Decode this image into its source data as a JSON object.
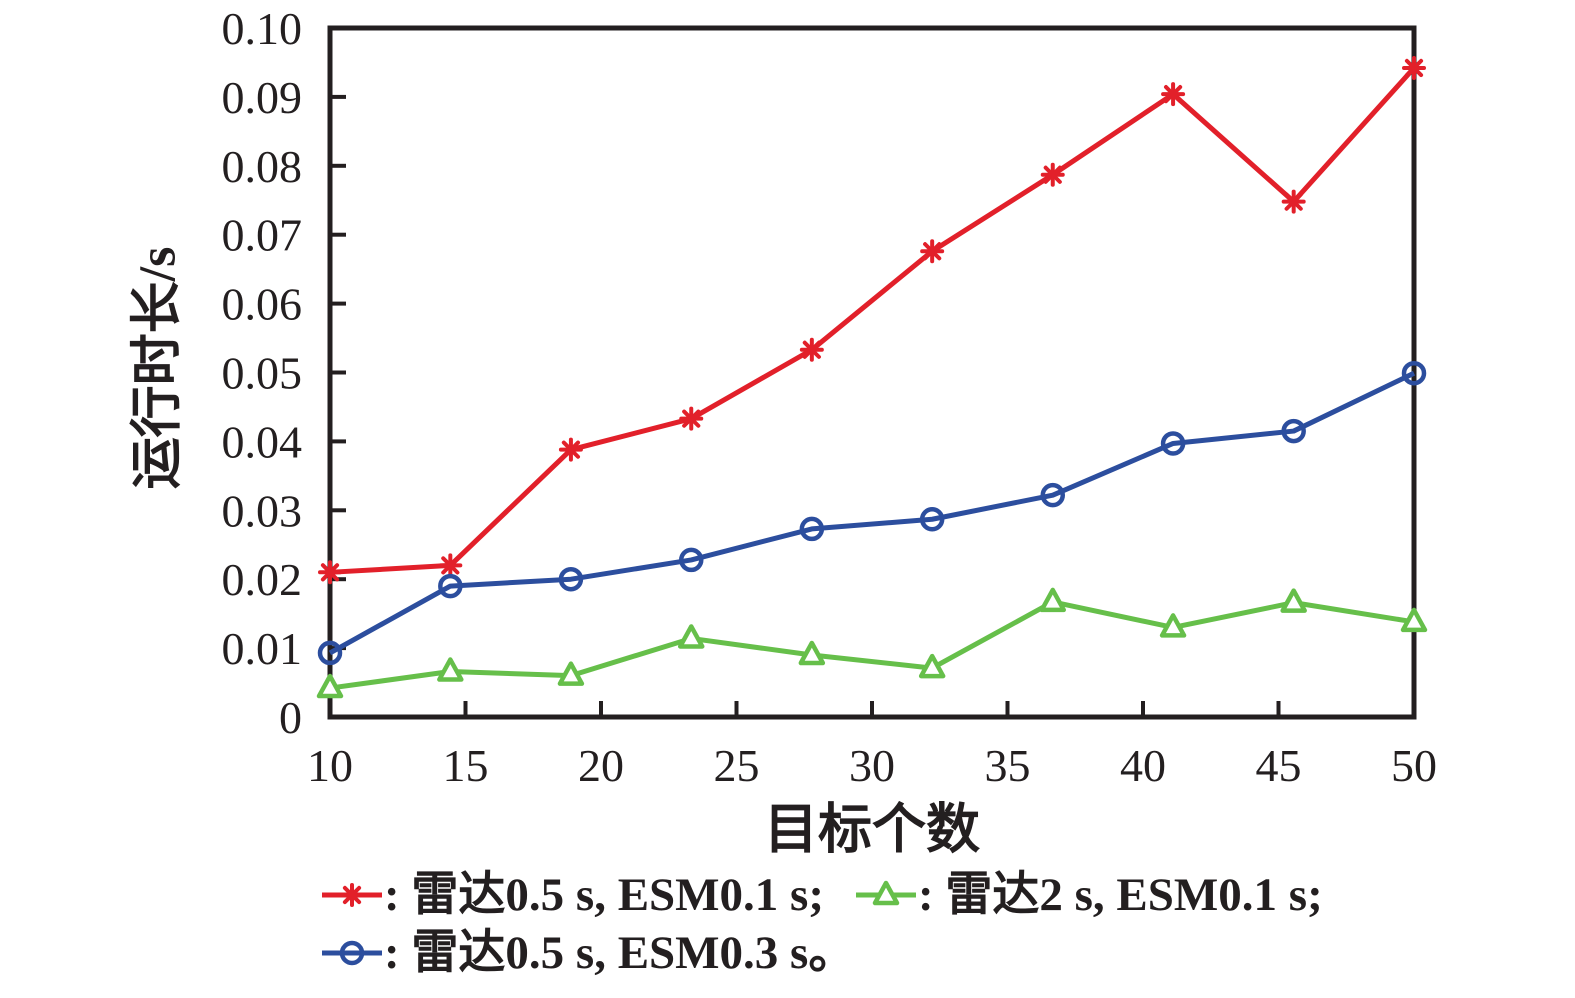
{
  "chart_data": {
    "type": "line",
    "title": "",
    "xlabel": "目标个数",
    "ylabel": "运行时长/s",
    "xlim": [
      10,
      50
    ],
    "ylim": [
      0,
      0.1
    ],
    "grid": false,
    "legend_position": "bottom",
    "axis_color": "#231f20",
    "x_ticks": [
      {
        "value": 10,
        "label": "10"
      },
      {
        "value": 15,
        "label": "15"
      },
      {
        "value": 20,
        "label": "20"
      },
      {
        "value": 25,
        "label": "25"
      },
      {
        "value": 30,
        "label": "30"
      },
      {
        "value": 35,
        "label": "35"
      },
      {
        "value": 40,
        "label": "40"
      },
      {
        "value": 45,
        "label": "45"
      },
      {
        "value": 50,
        "label": "50"
      }
    ],
    "y_ticks": [
      {
        "value": 0.0,
        "label": "0"
      },
      {
        "value": 0.01,
        "label": "0.01"
      },
      {
        "value": 0.02,
        "label": "0.02"
      },
      {
        "value": 0.03,
        "label": "0.03"
      },
      {
        "value": 0.04,
        "label": "0.04"
      },
      {
        "value": 0.05,
        "label": "0.05"
      },
      {
        "value": 0.06,
        "label": "0.06"
      },
      {
        "value": 0.07,
        "label": "0.07"
      },
      {
        "value": 0.08,
        "label": "0.08"
      },
      {
        "value": 0.09,
        "label": "0.09"
      },
      {
        "value": 0.1,
        "label": "0.10"
      }
    ],
    "x": [
      10,
      14.44,
      18.89,
      23.33,
      27.78,
      32.22,
      36.67,
      41.11,
      45.56,
      50
    ],
    "series": [
      {
        "name": "雷达0.5 s, ESM0.1 s",
        "legend_label": ": 雷达0.5 s, ESM0.1 s;",
        "marker": "asterisk",
        "color": "#e2202a",
        "values": [
          0.021,
          0.022,
          0.0388,
          0.0433,
          0.0533,
          0.0676,
          0.0787,
          0.0904,
          0.0748,
          0.0942
        ]
      },
      {
        "name": "雷达2 s, ESM0.1 s",
        "legend_label": ": 雷达2 s, ESM0.1 s;",
        "marker": "triangle",
        "color": "#66bf4a",
        "values": [
          0.0042,
          0.0066,
          0.006,
          0.0114,
          0.009,
          0.0071,
          0.0167,
          0.013,
          0.0166,
          0.0138
        ]
      },
      {
        "name": "雷达0.5 s, ESM0.3 s",
        "legend_label": ": 雷达0.5 s, ESM0.3 s。",
        "marker": "circle",
        "color": "#2c4e9e",
        "values": [
          0.0093,
          0.019,
          0.02,
          0.0228,
          0.0273,
          0.0287,
          0.0322,
          0.0397,
          0.0415,
          0.0499
        ]
      }
    ]
  }
}
